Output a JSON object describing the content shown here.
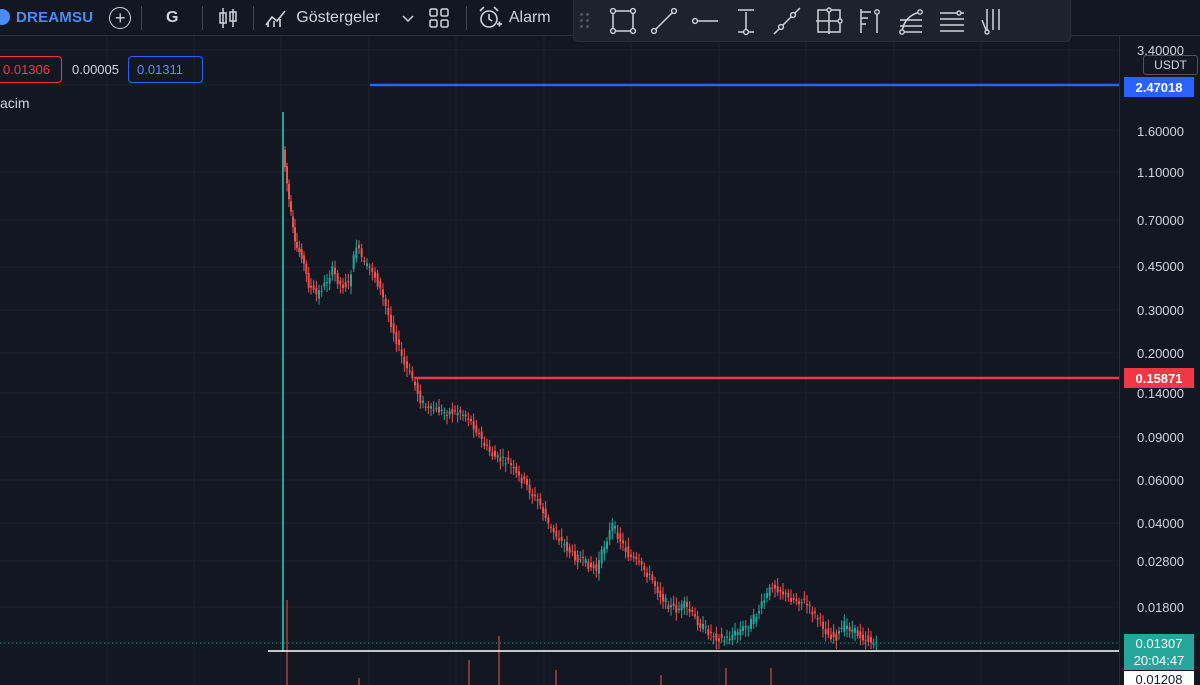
{
  "toolbar": {
    "symbol": "DREAMSU",
    "interval": "G",
    "indicators_label": "Göstergeler",
    "alarm_label": "Alarm",
    "icons": [
      "symbol-logo-icon",
      "add-symbol-icon",
      "candles-icon",
      "indicators-icon",
      "chevron-down-icon",
      "layout-grid-icon",
      "alarm-clock-icon"
    ]
  },
  "drawing_tools": [
    "rectangle-icon",
    "trend-line-icon",
    "horizontal-ray-icon",
    "vertical-measure-icon",
    "extended-line-icon",
    "crosshair-box-icon",
    "fib-retracement-icon",
    "fib-fan-icon",
    "parallel-lines-icon",
    "pitchfork-icon"
  ],
  "order_panel": {
    "sell_price": "0.01306",
    "spread": "0.00005",
    "buy_price": "0.01311"
  },
  "pane": {
    "volume_label": "acim"
  },
  "price_scale": {
    "currency": "USDT",
    "ticks": [
      "3.40000",
      "1.60000",
      "1.10000",
      "0.70000",
      "0.45000",
      "0.30000",
      "0.20000",
      "0.14000",
      "0.09000",
      "0.06000",
      "0.04000",
      "0.02800",
      "0.01800"
    ],
    "blue_line_price": "2.47018",
    "red_line_price": "0.15871",
    "last_price": "0.01307",
    "countdown": "20:04:47",
    "crosshair_price": "0.01208"
  },
  "colors": {
    "background": "#131722",
    "up": "#26a69a",
    "down": "#ef5350",
    "blue_line": "#2962ff",
    "red_line": "#f23645",
    "grid": "#1e222d"
  }
}
